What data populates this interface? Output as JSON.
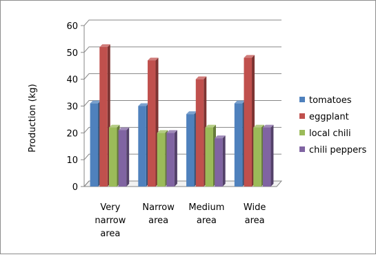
{
  "chart_data": {
    "type": "bar",
    "style": "3d-clustered-column",
    "title": "",
    "xlabel": "",
    "ylabel": "Production (kg)",
    "ylim": [
      0,
      60
    ],
    "yticks": [
      0,
      10,
      20,
      30,
      40,
      50,
      60
    ],
    "grid": true,
    "legend": "right",
    "categories": [
      [
        "Very",
        "narrow",
        "area"
      ],
      [
        "Narrow",
        "area"
      ],
      [
        "Medium",
        "area"
      ],
      [
        "Wide",
        "area"
      ]
    ],
    "series": [
      {
        "name": "tomatoes",
        "color": "#4f81bd",
        "values": [
          31,
          30,
          27,
          31
        ]
      },
      {
        "name": "eggplant",
        "color": "#c0504d",
        "values": [
          52,
          47,
          40,
          48
        ]
      },
      {
        "name": "local chili",
        "color": "#9bbb59",
        "values": [
          22,
          20,
          22,
          22
        ]
      },
      {
        "name": "chili peppers",
        "color": "#8064a2",
        "values": [
          21,
          20,
          18,
          22
        ]
      }
    ]
  }
}
